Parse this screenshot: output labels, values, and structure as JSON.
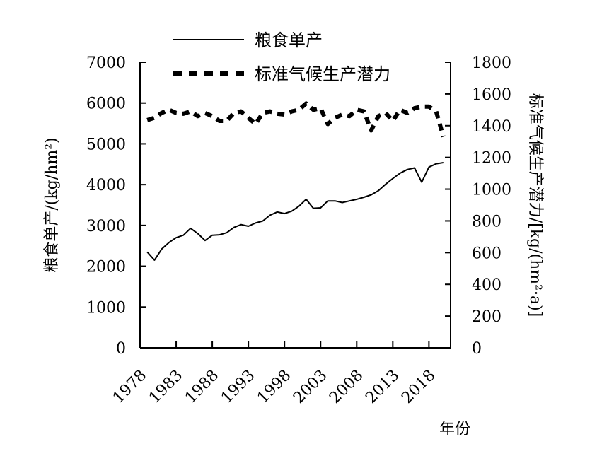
{
  "chart_data": {
    "type": "line",
    "xlabel": "年份",
    "x_ticks": [
      "1978",
      "1983",
      "1988",
      "1993",
      "1998",
      "2003",
      "2008",
      "2013",
      "2018"
    ],
    "x": [
      1979,
      1980,
      1981,
      1982,
      1983,
      1984,
      1985,
      1986,
      1987,
      1988,
      1989,
      1990,
      1991,
      1992,
      1993,
      1994,
      1995,
      1996,
      1997,
      1998,
      1999,
      2000,
      2001,
      2002,
      2003,
      2004,
      2005,
      2006,
      2007,
      2008,
      2009,
      2010,
      2011,
      2012,
      2013,
      2014,
      2015,
      2016,
      2017,
      2018,
      2019,
      2020
    ],
    "left_axis": {
      "label": "粮食单产/(kg/hm²)",
      "ylim": [
        0,
        7000
      ],
      "ticks": [
        "0",
        "1000",
        "2000",
        "3000",
        "4000",
        "5000",
        "6000",
        "7000"
      ]
    },
    "right_axis": {
      "label": "标准气候生产潜力/[kg/(hm²·a)]",
      "ylim": [
        0,
        1800
      ],
      "ticks": [
        "0",
        "200",
        "400",
        "600",
        "800",
        "1000",
        "1200",
        "1400",
        "1600",
        "1800"
      ]
    },
    "series": [
      {
        "name": "粮食单产",
        "axis": "left",
        "style": "solid",
        "values": [
          2350,
          2150,
          2420,
          2580,
          2700,
          2760,
          2930,
          2800,
          2630,
          2760,
          2770,
          2820,
          2950,
          3020,
          2980,
          3060,
          3110,
          3250,
          3330,
          3290,
          3350,
          3470,
          3640,
          3420,
          3430,
          3600,
          3600,
          3560,
          3600,
          3640,
          3690,
          3750,
          3850,
          4010,
          4150,
          4280,
          4370,
          4410,
          4060,
          4430,
          4510,
          4540
        ]
      },
      {
        "name": "标准气候生产潜力",
        "axis": "right",
        "style": "dashed",
        "values": [
          1435,
          1450,
          1480,
          1500,
          1480,
          1475,
          1490,
          1460,
          1480,
          1460,
          1430,
          1430,
          1480,
          1490,
          1450,
          1410,
          1480,
          1490,
          1475,
          1470,
          1490,
          1500,
          1540,
          1500,
          1510,
          1410,
          1450,
          1470,
          1460,
          1500,
          1490,
          1370,
          1460,
          1480,
          1430,
          1500,
          1480,
          1510,
          1520,
          1520,
          1490,
          1330
        ]
      }
    ]
  }
}
